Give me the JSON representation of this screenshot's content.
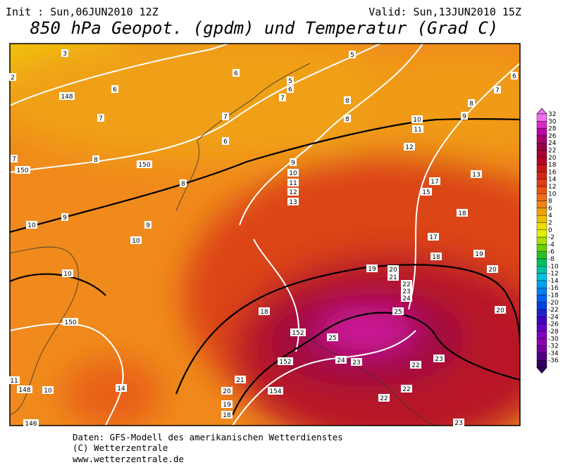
{
  "header": {
    "init": "Init : Sun,06JUN2010 12Z",
    "valid": "Valid: Sun,13JUN2010 15Z",
    "title": "850 hPa Geopot. (gpdm) und Temperatur (Grad C)"
  },
  "colorbar": {
    "labels": [
      "32",
      "30",
      "28",
      "26",
      "24",
      "22",
      "20",
      "18",
      "16",
      "14",
      "12",
      "10",
      "8",
      "6",
      "4",
      "2",
      "0",
      "-2",
      "-4",
      "-6",
      "-8",
      "-10",
      "-12",
      "-14",
      "-16",
      "-18",
      "-20",
      "-22",
      "-24",
      "-26",
      "-28",
      "-30",
      "-32",
      "-34",
      "-36"
    ],
    "colors": [
      "#f070f0",
      "#d828c8",
      "#c000a8",
      "#a80070",
      "#980048",
      "#a80030",
      "#b80020",
      "#c81818",
      "#d42818",
      "#e03c18",
      "#e85414",
      "#f06c18",
      "#f08414",
      "#f0a008",
      "#f0c000",
      "#f0e000",
      "#e0f000",
      "#a8e000",
      "#68d000",
      "#28c028",
      "#00c060",
      "#00c0a0",
      "#00c0e0",
      "#00a0f0",
      "#0080f0",
      "#0060f0",
      "#0040e0",
      "#2020d0",
      "#4000c0",
      "#6000c0",
      "#8000c0",
      "#9000b0",
      "#7000a0",
      "#500080",
      "#300060"
    ]
  },
  "map": {
    "labels": [
      "3",
      "2",
      "148",
      "6",
      "6",
      "5",
      "5",
      "6",
      "7",
      "6",
      "7",
      "8",
      "8",
      "8",
      "9",
      "7",
      "7",
      "10",
      "11",
      "6",
      "8",
      "150",
      "12",
      "7",
      "150",
      "9",
      "10",
      "13",
      "8",
      "11",
      "12",
      "15",
      "17",
      "13",
      "9",
      "9",
      "18",
      "10",
      "10",
      "17",
      "18",
      "19",
      "19",
      "20",
      "21",
      "20",
      "10",
      "22",
      "23",
      "24",
      "18",
      "25",
      "20",
      "150",
      "152",
      "25",
      "152",
      "24",
      "23",
      "22",
      "23",
      "11",
      "21",
      "14",
      "148",
      "10",
      "20",
      "154",
      "22",
      "19",
      "22",
      "18",
      "146",
      "23"
    ]
  },
  "footer": {
    "lines": [
      "Daten: GFS-Modell des amerikanischen Wetterdienstes",
      "(C) Wetterzentrale",
      "www.wetterzentrale.de"
    ]
  }
}
